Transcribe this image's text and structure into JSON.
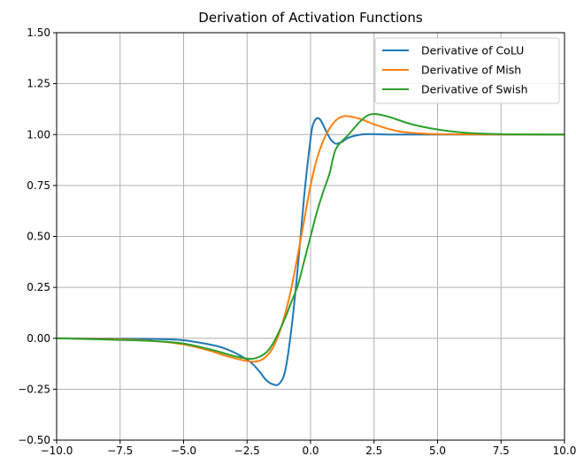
{
  "chart_data": {
    "type": "line",
    "title": "Derivation of Activation Functions",
    "xlabel": "",
    "ylabel": "",
    "xlim": [
      -10.0,
      10.0
    ],
    "ylim": [
      -0.5,
      1.5
    ],
    "x_ticks": [
      -10.0,
      -7.5,
      -5.0,
      -2.5,
      0.0,
      2.5,
      5.0,
      7.5,
      10.0
    ],
    "x_tick_labels": [
      "−10.0",
      "−7.5",
      "−5.0",
      "−2.5",
      "0.0",
      "2.5",
      "5.0",
      "7.5",
      "10.0"
    ],
    "y_ticks": [
      -0.5,
      -0.25,
      0.0,
      0.25,
      0.5,
      0.75,
      1.0,
      1.25,
      1.5
    ],
    "y_tick_labels": [
      "−0.50",
      "−0.25",
      "0.00",
      "0.25",
      "0.50",
      "0.75",
      "1.00",
      "1.25",
      "1.50"
    ],
    "grid": true,
    "legend_position": "top-right",
    "series": [
      {
        "name": "Derivative of CoLU",
        "color": "#1f77b4",
        "x": [
          -10,
          -7.5,
          -6,
          -5,
          -4,
          -3.5,
          -3,
          -2.5,
          -2.25,
          -2,
          -1.75,
          -1.5,
          -1.25,
          -1,
          -0.75,
          -0.5,
          -0.25,
          0,
          0.1,
          0.25,
          0.4,
          0.6,
          0.8,
          1,
          1.25,
          1.5,
          2,
          2.5,
          3,
          4,
          5,
          7.5,
          10
        ],
        "y": [
          0,
          -0.002,
          -0.004,
          -0.01,
          -0.03,
          -0.045,
          -0.07,
          -0.105,
          -0.13,
          -0.165,
          -0.205,
          -0.225,
          -0.225,
          -0.16,
          0.05,
          0.35,
          0.7,
          0.98,
          1.05,
          1.08,
          1.07,
          1.02,
          0.975,
          0.955,
          0.965,
          0.985,
          1.0,
          1.002,
          1.0,
          1.0,
          1.0,
          1.0,
          1.0
        ]
      },
      {
        "name": "Derivative of Mish",
        "color": "#ff7f0e",
        "x": [
          -10,
          -7.5,
          -6,
          -5,
          -4,
          -3.5,
          -3,
          -2.5,
          -2.25,
          -2,
          -1.75,
          -1.5,
          -1.25,
          -1,
          -0.75,
          -0.5,
          -0.25,
          0,
          0.25,
          0.5,
          0.75,
          1,
          1.25,
          1.5,
          2,
          2.5,
          3,
          3.5,
          4,
          5,
          7.5,
          10
        ],
        "y": [
          0,
          -0.005,
          -0.015,
          -0.03,
          -0.06,
          -0.08,
          -0.098,
          -0.112,
          -0.115,
          -0.11,
          -0.09,
          -0.05,
          0.02,
          0.12,
          0.25,
          0.41,
          0.58,
          0.75,
          0.88,
          0.97,
          1.03,
          1.07,
          1.088,
          1.09,
          1.075,
          1.05,
          1.03,
          1.015,
          1.008,
          1.002,
          1.0,
          1.0
        ]
      },
      {
        "name": "Derivative of Swish",
        "color": "#2ca02c",
        "x": [
          -10,
          -7.5,
          -6,
          -5,
          -4,
          -3.5,
          -3,
          -2.5,
          -2.25,
          -2,
          -1.75,
          -1.5,
          -1.25,
          -1,
          -0.75,
          -0.5,
          -0.25,
          0,
          0.25,
          0.5,
          0.75,
          1,
          1.5,
          2,
          2.4,
          3,
          4,
          5,
          6,
          7.5,
          10
        ],
        "y": [
          0,
          -0.008,
          -0.015,
          -0.026,
          -0.053,
          -0.07,
          -0.088,
          -0.1,
          -0.1,
          -0.09,
          -0.07,
          -0.03,
          0.03,
          0.1,
          0.18,
          0.26,
          0.38,
          0.5,
          0.62,
          0.72,
          0.81,
          0.93,
          1.0,
          1.07,
          1.1,
          1.09,
          1.05,
          1.025,
          1.01,
          1.002,
          1.0
        ]
      }
    ]
  }
}
